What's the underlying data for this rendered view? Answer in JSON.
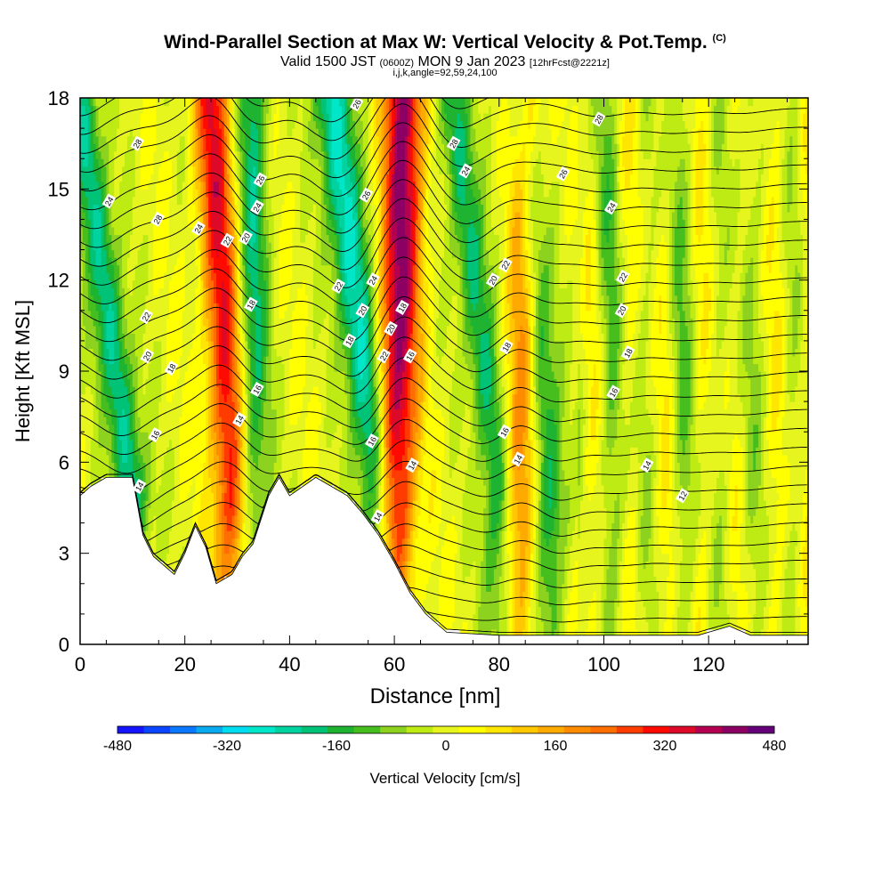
{
  "title": {
    "main": "Wind-Parallel Section at Max W: Vertical Velocity & Pot.Temp.",
    "copyright": "(C)",
    "valid_prefix": "Valid 1500 JST",
    "valid_utc": "(0600Z)",
    "valid_date": "MON 9 Jan 2023",
    "forecast": "[12hrFcst@2221z]",
    "section_params": "i,j,k,angle=92,59,24,100"
  },
  "chart_data": {
    "type": "heatmap",
    "xlabel": "Distance [nm]",
    "ylabel": "Height [Kft MSL]",
    "xlim": [
      0,
      139
    ],
    "ylim": [
      0,
      18
    ],
    "x_ticks": [
      "0",
      "20",
      "40",
      "60",
      "80",
      "100",
      "120"
    ],
    "y_ticks": [
      "0",
      "3",
      "6",
      "9",
      "12",
      "15",
      "18"
    ],
    "colorbar": {
      "label": "Vertical Velocity [cm/s]",
      "min": -480,
      "max": 480,
      "step": 40,
      "tick_labels": [
        "-480",
        "-320",
        "-160",
        "0",
        "160",
        "320",
        "480"
      ],
      "colors": [
        "#1414ff",
        "#0a46ff",
        "#0a78ff",
        "#0aaaf0",
        "#00dcf0",
        "#00e6c8",
        "#00d2a0",
        "#00c378",
        "#1eb432",
        "#46be1e",
        "#8cd21e",
        "#beeb14",
        "#e6f51e",
        "#ffff00",
        "#ffe600",
        "#ffc800",
        "#ffaa00",
        "#ff8c00",
        "#ff6e00",
        "#ff3c00",
        "#ff0a00",
        "#dc0a28",
        "#b40050",
        "#8c0064",
        "#640078"
      ]
    },
    "vertical_velocity_bands": [
      {
        "x_low": 10,
        "x_top": 0,
        "w": -250
      },
      {
        "x_low": 29,
        "x_top": 25,
        "w": 330
      },
      {
        "x_low": 33,
        "x_top": 33,
        "w": -200
      },
      {
        "x_low": 57,
        "x_top": 48,
        "w": -310
      },
      {
        "x_low": 60,
        "x_top": 62,
        "w": 420
      },
      {
        "x_low": 80,
        "x_top": 71,
        "w": -220
      },
      {
        "x_low": 84,
        "x_top": 85,
        "w": 240
      },
      {
        "x_low": 90,
        "x_top": 84,
        "w": -210
      },
      {
        "x_low": 103,
        "x_top": 99,
        "w": -80
      },
      {
        "x_low": 116,
        "x_top": 113,
        "w": -60
      },
      {
        "x_low": 127,
        "x_top": 126,
        "w": -50
      }
    ],
    "terrain_profile": [
      {
        "x": 0,
        "h": 4.9
      },
      {
        "x": 2,
        "h": 5.2
      },
      {
        "x": 5,
        "h": 5.5
      },
      {
        "x": 10,
        "h": 5.5
      },
      {
        "x": 12,
        "h": 3.6
      },
      {
        "x": 14,
        "h": 2.9
      },
      {
        "x": 18,
        "h": 2.3
      },
      {
        "x": 20,
        "h": 3.0
      },
      {
        "x": 22,
        "h": 3.9
      },
      {
        "x": 24,
        "h": 3.2
      },
      {
        "x": 26,
        "h": 2.0
      },
      {
        "x": 29,
        "h": 2.3
      },
      {
        "x": 31,
        "h": 2.9
      },
      {
        "x": 33,
        "h": 3.3
      },
      {
        "x": 36,
        "h": 4.9
      },
      {
        "x": 38,
        "h": 5.5
      },
      {
        "x": 40,
        "h": 4.9
      },
      {
        "x": 45,
        "h": 5.5
      },
      {
        "x": 48,
        "h": 5.2
      },
      {
        "x": 51,
        "h": 4.9
      },
      {
        "x": 54,
        "h": 4.3
      },
      {
        "x": 57,
        "h": 3.6
      },
      {
        "x": 60,
        "h": 2.7
      },
      {
        "x": 63,
        "h": 1.7
      },
      {
        "x": 66,
        "h": 1.0
      },
      {
        "x": 70,
        "h": 0.4
      },
      {
        "x": 80,
        "h": 0.3
      },
      {
        "x": 100,
        "h": 0.3
      },
      {
        "x": 118,
        "h": 0.3
      },
      {
        "x": 124,
        "h": 0.6
      },
      {
        "x": 128,
        "h": 0.3
      },
      {
        "x": 139,
        "h": 0.3
      }
    ],
    "theta_contour_labels": [
      {
        "text": "28",
        "x": 10.9,
        "y": 16.5
      },
      {
        "text": "24",
        "x": 5.5,
        "y": 14.6
      },
      {
        "text": "28",
        "x": 14.8,
        "y": 14.0
      },
      {
        "text": "22",
        "x": 12.6,
        "y": 10.8
      },
      {
        "text": "20",
        "x": 12.8,
        "y": 9.5
      },
      {
        "text": "18",
        "x": 17.4,
        "y": 9.1
      },
      {
        "text": "16",
        "x": 14.3,
        "y": 6.9
      },
      {
        "text": "14",
        "x": 11.3,
        "y": 5.2
      },
      {
        "text": "24",
        "x": 22.6,
        "y": 13.7
      },
      {
        "text": "22",
        "x": 28.1,
        "y": 13.3
      },
      {
        "text": "20",
        "x": 31.6,
        "y": 13.4
      },
      {
        "text": "24",
        "x": 33.8,
        "y": 14.4
      },
      {
        "text": "26",
        "x": 34.4,
        "y": 15.3
      },
      {
        "text": "18",
        "x": 32.6,
        "y": 11.2
      },
      {
        "text": "16",
        "x": 33.8,
        "y": 8.4
      },
      {
        "text": "14",
        "x": 30.4,
        "y": 7.4
      },
      {
        "text": "26",
        "x": 52.8,
        "y": 17.8
      },
      {
        "text": "26",
        "x": 54.6,
        "y": 14.8
      },
      {
        "text": "22",
        "x": 49.3,
        "y": 11.8
      },
      {
        "text": "24",
        "x": 55.9,
        "y": 12.0
      },
      {
        "text": "20",
        "x": 53.9,
        "y": 11.0
      },
      {
        "text": "18",
        "x": 51.4,
        "y": 10.0
      },
      {
        "text": "18",
        "x": 61.5,
        "y": 11.1
      },
      {
        "text": "20",
        "x": 59.3,
        "y": 10.4
      },
      {
        "text": "22",
        "x": 58.0,
        "y": 9.5
      },
      {
        "text": "16",
        "x": 63.0,
        "y": 9.5
      },
      {
        "text": "16",
        "x": 55.7,
        "y": 6.7
      },
      {
        "text": "14",
        "x": 63.4,
        "y": 5.9
      },
      {
        "text": "14",
        "x": 56.8,
        "y": 4.2
      },
      {
        "text": "28",
        "x": 71.3,
        "y": 16.5
      },
      {
        "text": "24",
        "x": 73.6,
        "y": 15.6
      },
      {
        "text": "22",
        "x": 81.2,
        "y": 12.5
      },
      {
        "text": "20",
        "x": 78.8,
        "y": 12.0
      },
      {
        "text": "18",
        "x": 81.4,
        "y": 9.8
      },
      {
        "text": "16",
        "x": 81.0,
        "y": 7.0
      },
      {
        "text": "14",
        "x": 83.6,
        "y": 6.1
      },
      {
        "text": "26",
        "x": 92.2,
        "y": 15.5
      },
      {
        "text": "28",
        "x": 99.0,
        "y": 17.3
      },
      {
        "text": "24",
        "x": 101.4,
        "y": 14.4
      },
      {
        "text": "22",
        "x": 103.6,
        "y": 12.1
      },
      {
        "text": "20",
        "x": 103.4,
        "y": 11.0
      },
      {
        "text": "18",
        "x": 104.6,
        "y": 9.6
      },
      {
        "text": "16",
        "x": 101.8,
        "y": 8.3
      },
      {
        "text": "14",
        "x": 108.2,
        "y": 5.9
      },
      {
        "text": "12",
        "x": 115.0,
        "y": 4.9
      }
    ]
  }
}
